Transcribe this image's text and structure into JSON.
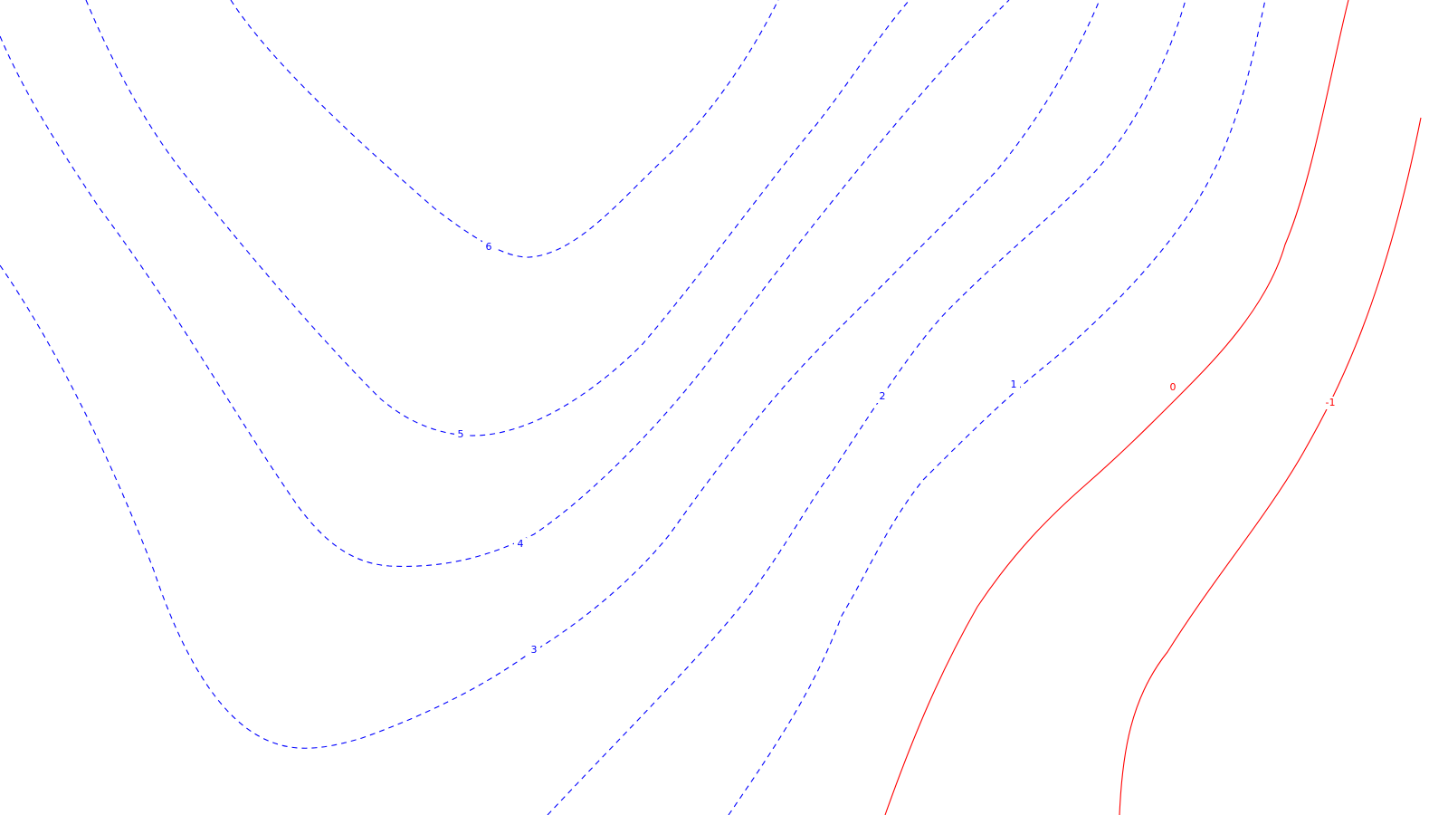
{
  "chart_data": {
    "type": "contour",
    "title": "",
    "xlabel": "",
    "ylabel": "",
    "grid": false,
    "legend": "none",
    "colors": {
      "positive": "#0000ff",
      "negative": "#ff0000"
    },
    "line_styles": {
      "positive": "dashed",
      "non_positive": "solid"
    },
    "levels": [
      {
        "value": 6,
        "label": "6"
      },
      {
        "value": 5,
        "label": "5"
      },
      {
        "value": 4,
        "label": "4"
      },
      {
        "value": 3,
        "label": "3"
      },
      {
        "value": 2,
        "label": "2"
      },
      {
        "value": 1,
        "label": "1"
      },
      {
        "value": 0,
        "label": "0"
      },
      {
        "value": -1,
        "label": "-1"
      }
    ]
  }
}
